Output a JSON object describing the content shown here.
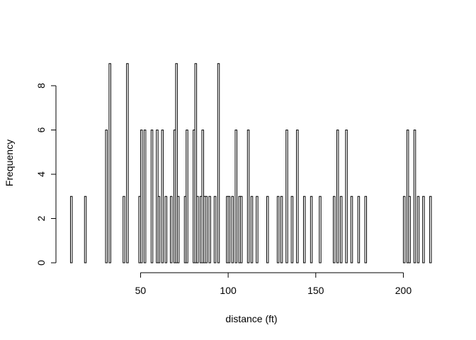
{
  "chart_data": {
    "type": "bar",
    "title": "",
    "xlabel": "distance (ft)",
    "ylabel": "Frequency",
    "xlim": [
      10,
      216
    ],
    "ylim": [
      0,
      9
    ],
    "bin_width": 1,
    "x_ticks": [
      50,
      100,
      150,
      200
    ],
    "y_ticks": [
      0,
      2,
      4,
      6,
      8
    ],
    "bars": [
      {
        "x": 10,
        "count": 3
      },
      {
        "x": 18,
        "count": 3
      },
      {
        "x": 30,
        "count": 6
      },
      {
        "x": 32,
        "count": 9
      },
      {
        "x": 40,
        "count": 3
      },
      {
        "x": 42,
        "count": 9
      },
      {
        "x": 49,
        "count": 3
      },
      {
        "x": 50,
        "count": 6
      },
      {
        "x": 52,
        "count": 6
      },
      {
        "x": 56,
        "count": 6
      },
      {
        "x": 59,
        "count": 6
      },
      {
        "x": 60,
        "count": 3
      },
      {
        "x": 62,
        "count": 6
      },
      {
        "x": 64,
        "count": 3
      },
      {
        "x": 67,
        "count": 3
      },
      {
        "x": 69,
        "count": 6
      },
      {
        "x": 70,
        "count": 9
      },
      {
        "x": 71,
        "count": 3
      },
      {
        "x": 75,
        "count": 3
      },
      {
        "x": 76,
        "count": 6
      },
      {
        "x": 80,
        "count": 6
      },
      {
        "x": 81,
        "count": 9
      },
      {
        "x": 82,
        "count": 3
      },
      {
        "x": 84,
        "count": 3
      },
      {
        "x": 85,
        "count": 6
      },
      {
        "x": 86,
        "count": 3
      },
      {
        "x": 87,
        "count": 3
      },
      {
        "x": 89,
        "count": 3
      },
      {
        "x": 92,
        "count": 3
      },
      {
        "x": 94,
        "count": 9
      },
      {
        "x": 99,
        "count": 3
      },
      {
        "x": 100,
        "count": 3
      },
      {
        "x": 102,
        "count": 3
      },
      {
        "x": 104,
        "count": 6
      },
      {
        "x": 106,
        "count": 3
      },
      {
        "x": 107,
        "count": 3
      },
      {
        "x": 111,
        "count": 6
      },
      {
        "x": 113,
        "count": 3
      },
      {
        "x": 116,
        "count": 3
      },
      {
        "x": 122,
        "count": 3
      },
      {
        "x": 128,
        "count": 3
      },
      {
        "x": 130,
        "count": 3
      },
      {
        "x": 133,
        "count": 6
      },
      {
        "x": 136,
        "count": 3
      },
      {
        "x": 139,
        "count": 6
      },
      {
        "x": 143,
        "count": 3
      },
      {
        "x": 147,
        "count": 3
      },
      {
        "x": 152,
        "count": 3
      },
      {
        "x": 160,
        "count": 3
      },
      {
        "x": 162,
        "count": 6
      },
      {
        "x": 164,
        "count": 3
      },
      {
        "x": 167,
        "count": 6
      },
      {
        "x": 170,
        "count": 3
      },
      {
        "x": 174,
        "count": 3
      },
      {
        "x": 178,
        "count": 3
      },
      {
        "x": 200,
        "count": 3
      },
      {
        "x": 202,
        "count": 6
      },
      {
        "x": 203,
        "count": 3
      },
      {
        "x": 206,
        "count": 6
      },
      {
        "x": 208,
        "count": 3
      },
      {
        "x": 211,
        "count": 3
      },
      {
        "x": 215,
        "count": 3
      }
    ]
  }
}
